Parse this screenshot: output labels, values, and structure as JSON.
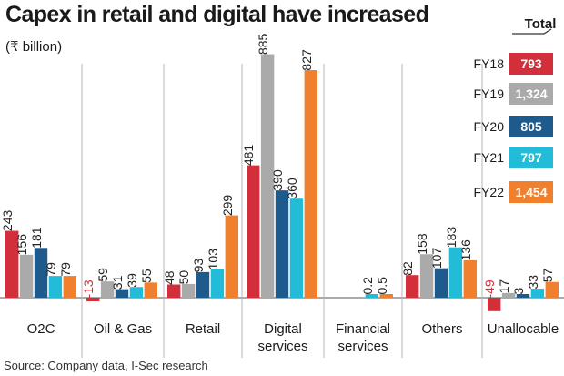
{
  "chart_data": {
    "type": "bar",
    "title": "Capex in retail and digital have increased",
    "ylabel": "(₹ billion)",
    "xlabel": "",
    "source": "Source: Company data, I-Sec research",
    "categories": [
      [
        "O2C"
      ],
      [
        "Oil & Gas"
      ],
      [
        "Retail"
      ],
      [
        "Digital",
        "services"
      ],
      [
        "Financial",
        "services"
      ],
      [
        "Others"
      ],
      [
        "Unallocable"
      ]
    ],
    "series": [
      {
        "name": "FY18",
        "color": "#d32f3a",
        "values": [
          243,
          -13,
          48,
          481,
          null,
          82,
          -49
        ],
        "labels": [
          "243",
          "-13",
          "48",
          "481",
          "",
          "82",
          "-49"
        ]
      },
      {
        "name": "FY19",
        "color": "#aaaaaa",
        "values": [
          156,
          59,
          50,
          885,
          null,
          158,
          17
        ],
        "labels": [
          "156",
          "59",
          "50",
          "885",
          "",
          "158",
          "17"
        ]
      },
      {
        "name": "FY20",
        "color": "#1f5a8c",
        "values": [
          181,
          31,
          93,
          390,
          null,
          107,
          3
        ],
        "labels": [
          "181",
          "31",
          "93",
          "390",
          "",
          "107",
          "3"
        ]
      },
      {
        "name": "FY21",
        "color": "#22bcd8",
        "values": [
          79,
          39,
          103,
          360,
          0.2,
          183,
          33
        ],
        "labels": [
          "79",
          "39",
          "103",
          "360",
          "0.2",
          "183",
          "33"
        ]
      },
      {
        "name": "FY22",
        "color": "#f07f2e",
        "values": [
          79,
          55,
          299,
          827,
          0.5,
          136,
          57
        ],
        "labels": [
          "79",
          "55",
          "299",
          "827",
          "0.5",
          "136",
          "57"
        ]
      }
    ],
    "totals_title": "Total",
    "totals": [
      "793",
      "1,324",
      "805",
      "797",
      "1,454"
    ],
    "ylim": [
      -55,
      900
    ],
    "negative_label_color": "#d32f3a",
    "label_color": "#222222"
  }
}
